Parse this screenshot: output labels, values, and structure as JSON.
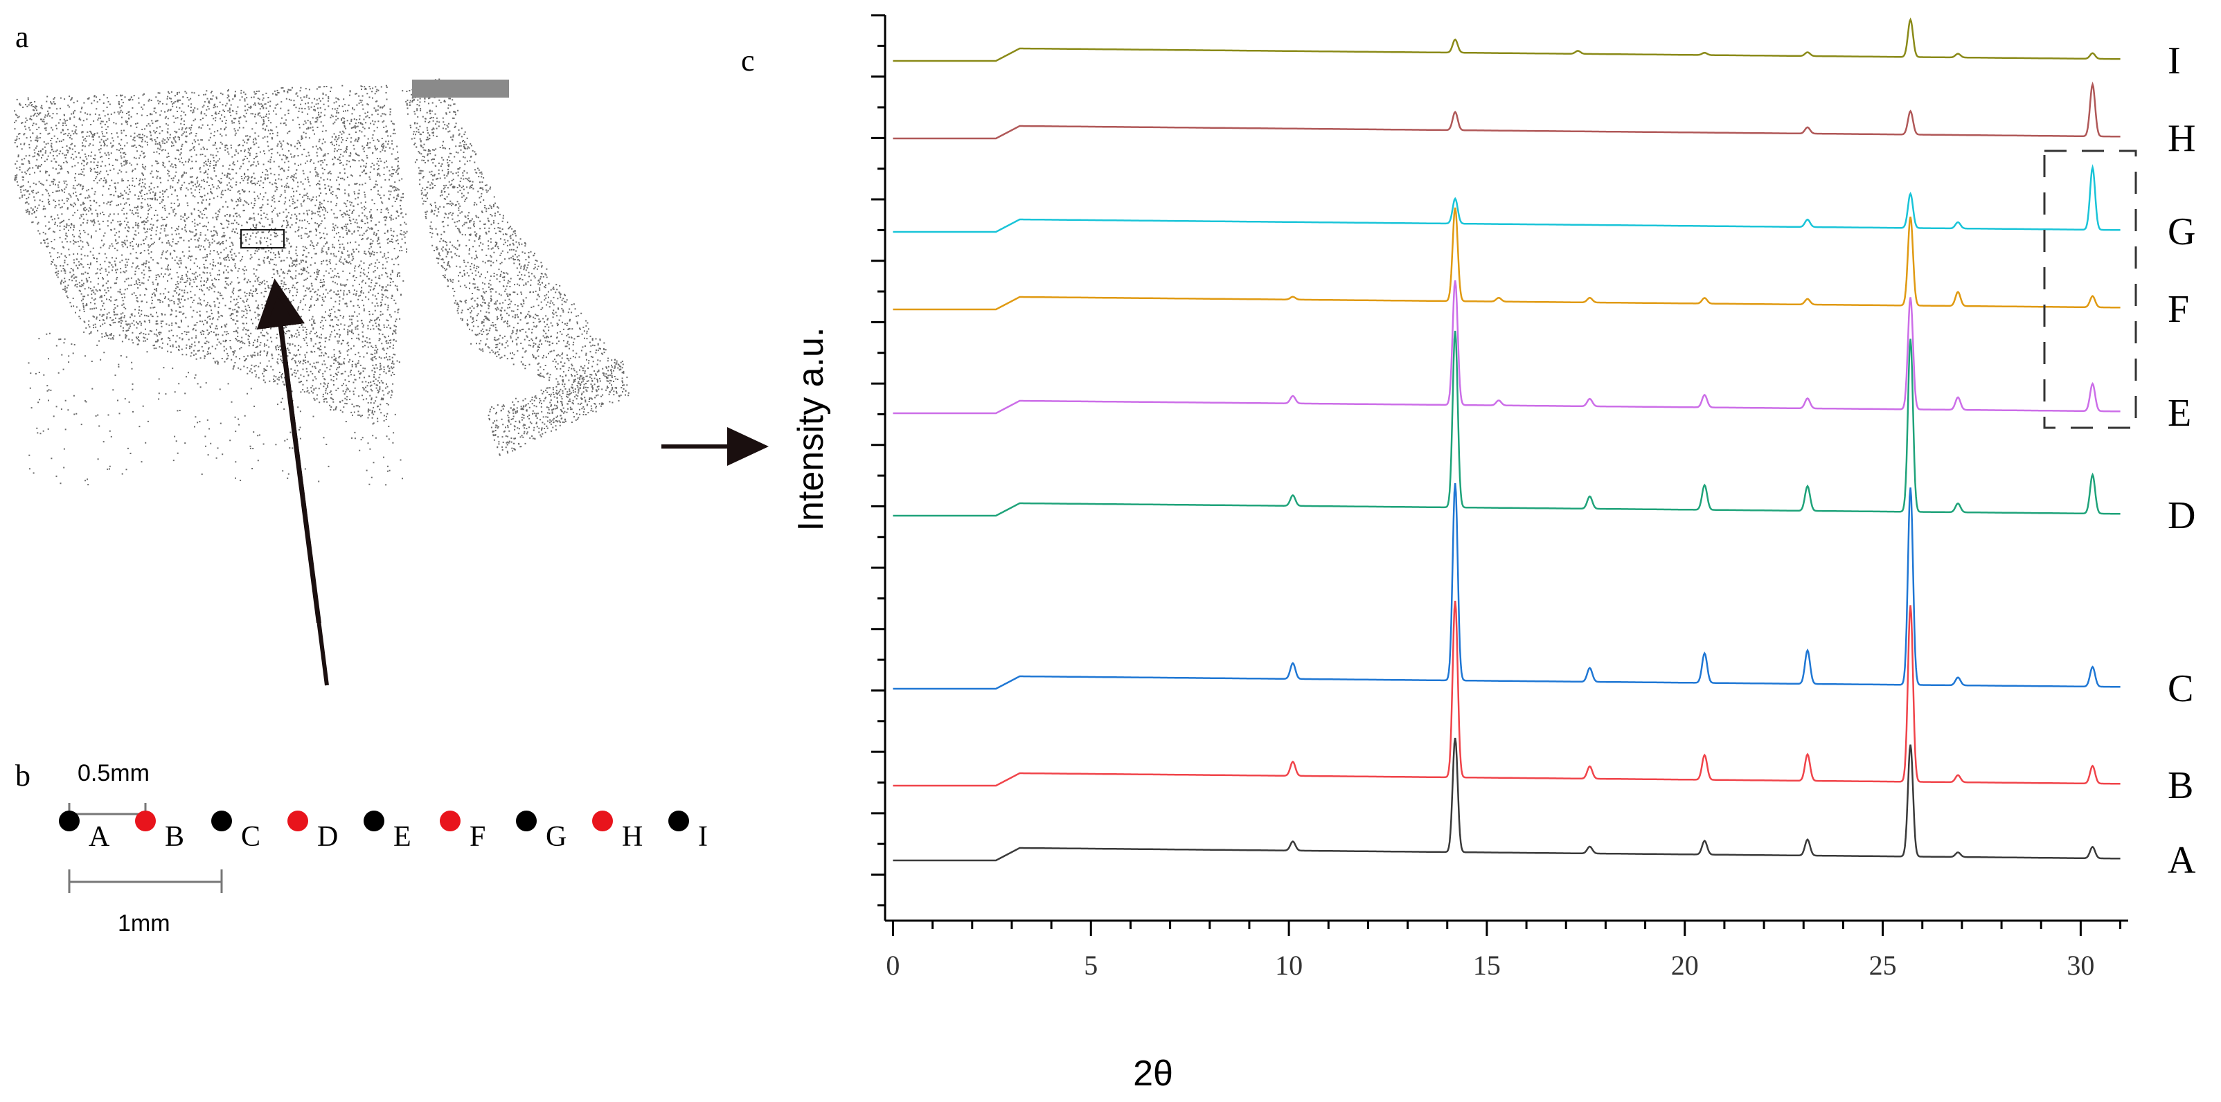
{
  "panels": {
    "a": "a",
    "b": "b",
    "c": "c"
  },
  "panel_b": {
    "scale_half": "0.5mm",
    "scale_full": "1mm",
    "points": [
      {
        "label": "A",
        "color": "#000000"
      },
      {
        "label": "B",
        "color": "#e8141c"
      },
      {
        "label": "C",
        "color": "#000000"
      },
      {
        "label": "D",
        "color": "#e8141c"
      },
      {
        "label": "E",
        "color": "#000000"
      },
      {
        "label": "F",
        "color": "#e8141c"
      },
      {
        "label": "G",
        "color": "#000000"
      },
      {
        "label": "H",
        "color": "#e8141c"
      },
      {
        "label": "I",
        "color": "#000000"
      }
    ]
  },
  "chart_data": {
    "type": "line",
    "xlabel": "2θ",
    "ylabel": "Intensity a.u.",
    "xlim": [
      -0.2,
      31.2
    ],
    "xticks": [
      0,
      5,
      10,
      15,
      20,
      25,
      30
    ],
    "grid": false,
    "legend": "right (series letters beside each trace)",
    "series": [
      {
        "name": "A",
        "color": "#3a3a3a",
        "scale": 0.55,
        "peaks": [
          [
            10.1,
            0.08
          ],
          [
            14.2,
            1.0
          ],
          [
            17.6,
            0.06
          ],
          [
            20.5,
            0.12
          ],
          [
            23.1,
            0.14
          ],
          [
            25.7,
            0.98
          ],
          [
            26.9,
            0.04
          ],
          [
            30.3,
            0.1
          ]
        ]
      },
      {
        "name": "B",
        "color": "#f0444a",
        "scale": 0.85,
        "peaks": [
          [
            10.1,
            0.08
          ],
          [
            14.2,
            1.0
          ],
          [
            17.6,
            0.07
          ],
          [
            20.5,
            0.14
          ],
          [
            23.1,
            0.15
          ],
          [
            25.7,
            1.0
          ],
          [
            26.9,
            0.04
          ],
          [
            30.3,
            0.1
          ]
        ]
      },
      {
        "name": "C",
        "color": "#1f77d4",
        "scale": 0.95,
        "peaks": [
          [
            10.1,
            0.08
          ],
          [
            14.2,
            1.0
          ],
          [
            17.6,
            0.07
          ],
          [
            20.5,
            0.15
          ],
          [
            23.1,
            0.17
          ],
          [
            25.7,
            1.0
          ],
          [
            26.9,
            0.04
          ],
          [
            30.3,
            0.1
          ]
        ]
      },
      {
        "name": "D",
        "color": "#1fa37a",
        "scale": 0.85,
        "peaks": [
          [
            10.1,
            0.06
          ],
          [
            14.2,
            1.0
          ],
          [
            17.6,
            0.07
          ],
          [
            20.5,
            0.14
          ],
          [
            23.1,
            0.14
          ],
          [
            25.7,
            0.98
          ],
          [
            26.9,
            0.05
          ],
          [
            30.3,
            0.22
          ]
        ]
      },
      {
        "name": "E",
        "color": "#cc6ee8",
        "scale": 0.6,
        "peaks": [
          [
            10.1,
            0.06
          ],
          [
            14.2,
            1.0
          ],
          [
            15.3,
            0.04
          ],
          [
            17.6,
            0.06
          ],
          [
            20.5,
            0.1
          ],
          [
            23.1,
            0.08
          ],
          [
            25.7,
            0.9
          ],
          [
            26.9,
            0.1
          ],
          [
            30.3,
            0.22
          ]
        ]
      },
      {
        "name": "F",
        "color": "#e09a12",
        "scale": 0.45,
        "peaks": [
          [
            10.1,
            0.03
          ],
          [
            14.2,
            1.0
          ],
          [
            15.3,
            0.04
          ],
          [
            17.6,
            0.05
          ],
          [
            20.5,
            0.06
          ],
          [
            23.1,
            0.06
          ],
          [
            25.7,
            0.95
          ],
          [
            26.9,
            0.15
          ],
          [
            30.3,
            0.12
          ]
        ]
      },
      {
        "name": "G",
        "color": "#19c4d8",
        "scale": 0.3,
        "peaks": [
          [
            14.2,
            0.4
          ],
          [
            23.1,
            0.12
          ],
          [
            25.7,
            0.55
          ],
          [
            26.9,
            0.1
          ],
          [
            30.3,
            1.0
          ]
        ]
      },
      {
        "name": "H",
        "color": "#b05858",
        "scale": 0.25,
        "peaks": [
          [
            14.2,
            0.35
          ],
          [
            23.1,
            0.12
          ],
          [
            25.7,
            0.45
          ],
          [
            30.3,
            1.0
          ]
        ]
      },
      {
        "name": "I",
        "color": "#8a8a18",
        "scale": 0.18,
        "peaks": [
          [
            14.2,
            0.35
          ],
          [
            17.3,
            0.08
          ],
          [
            20.5,
            0.06
          ],
          [
            23.1,
            0.1
          ],
          [
            25.7,
            1.0
          ],
          [
            26.9,
            0.1
          ],
          [
            30.3,
            0.15
          ]
        ]
      }
    ]
  }
}
